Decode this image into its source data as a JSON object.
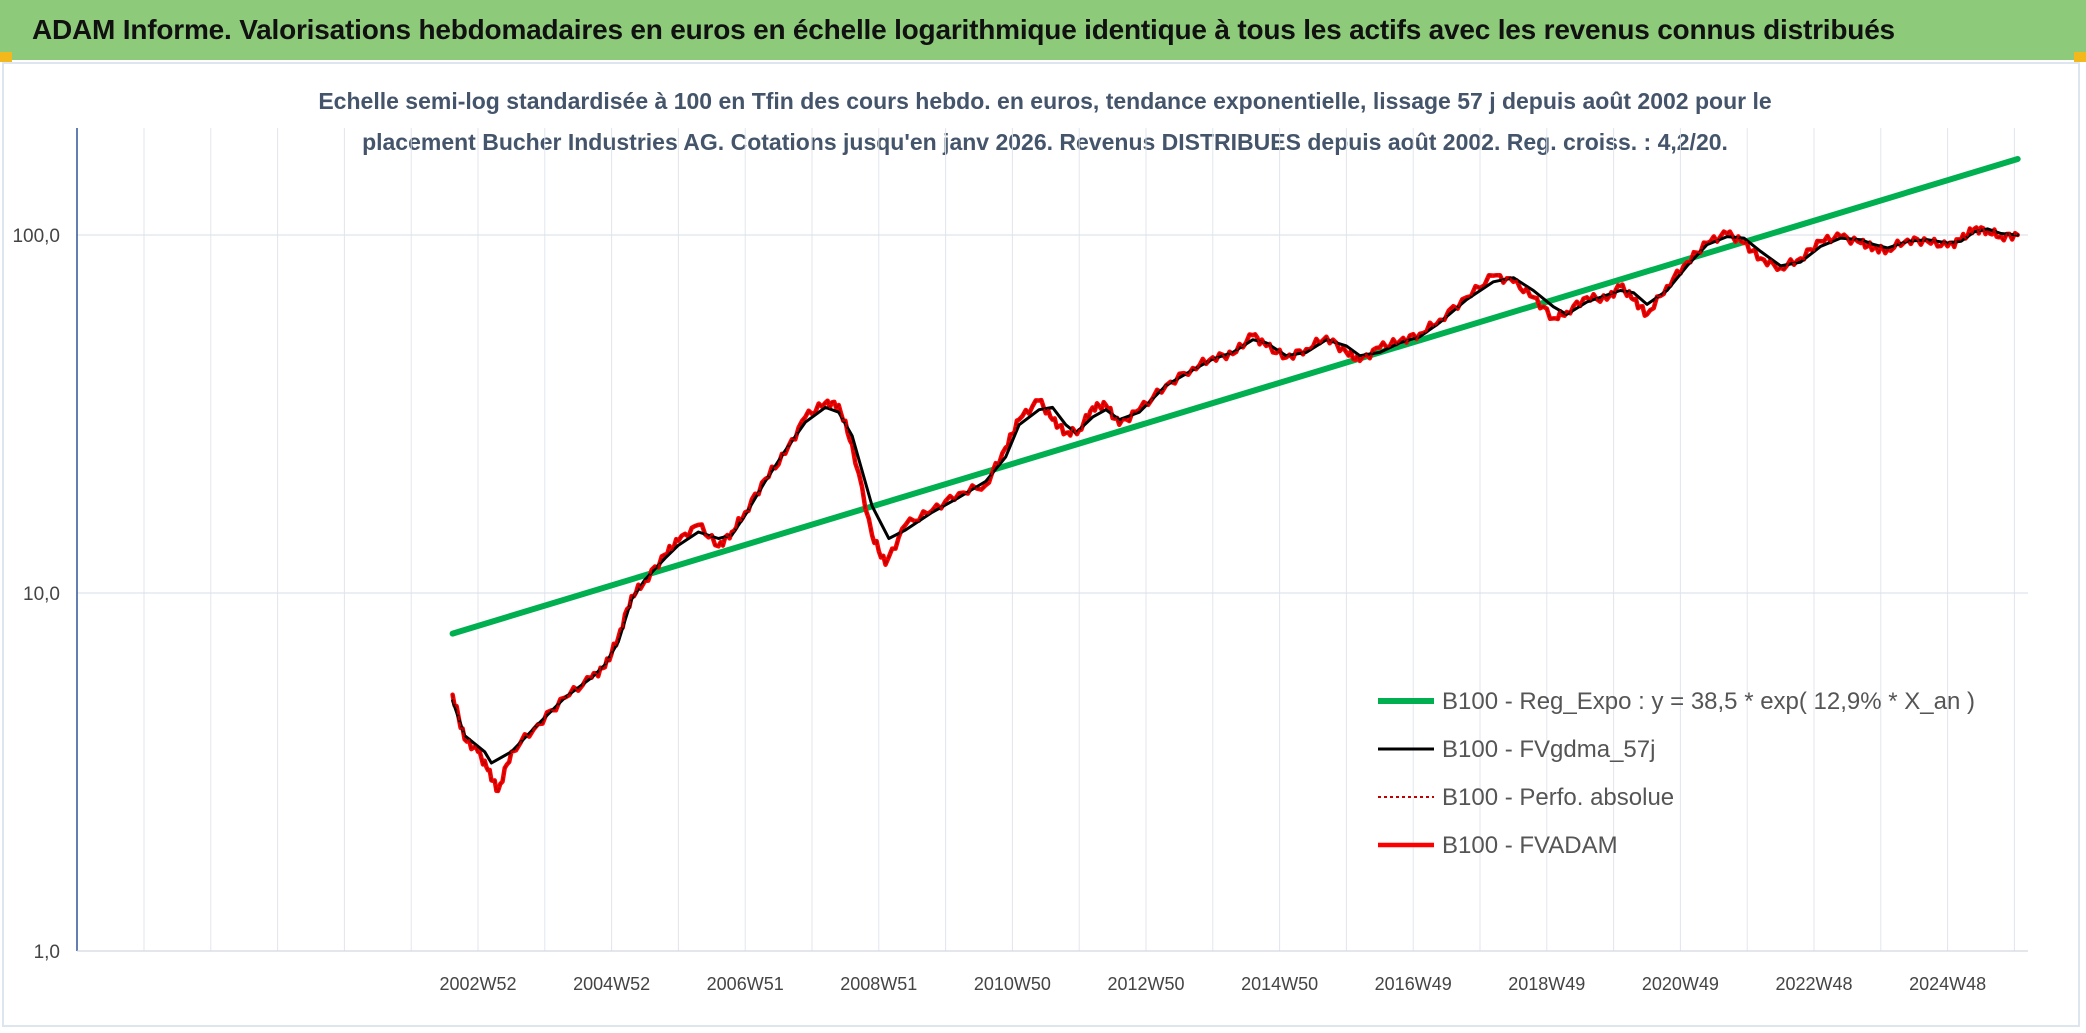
{
  "banner": {
    "title": "ADAM Informe. Valorisations hebdomadaires en euros en échelle logarithmique identique à tous les actifs avec les revenus connus distribués"
  },
  "colors": {
    "banner_bg": "#8dcb7a",
    "regression": "#00b050",
    "smoothed": "#000000",
    "absolute": "#c00000",
    "fvadam": "#ff0000",
    "gold_corner": "#f2b81c"
  },
  "chart_data": {
    "type": "line",
    "title_line1": "Echelle semi-log standardisée à 100 en Tfin des cours hebdo. en euros, tendance exponentielle, lissage 57 j depuis août 2002 pour le",
    "title_line2": "placement Bucher Industries AG. Cotations jusqu'en janv 2026. Revenus DISTRIBUES depuis août 2002. Reg. croiss. : 4,2/20.",
    "y_scale": "log",
    "ylim": [
      1,
      100
    ],
    "y_ticks": [
      {
        "value": 1,
        "label": "1,0"
      },
      {
        "value": 10,
        "label": "10,0"
      },
      {
        "value": 100,
        "label": "100,0"
      }
    ],
    "x_tick_labels": [
      {
        "year": 2003.0,
        "label": "2002W52"
      },
      {
        "year": 2005.0,
        "label": "2004W52"
      },
      {
        "year": 2007.0,
        "label": "2006W51"
      },
      {
        "year": 2009.0,
        "label": "2008W51"
      },
      {
        "year": 2011.0,
        "label": "2010W50"
      },
      {
        "year": 2013.0,
        "label": "2012W50"
      },
      {
        "year": 2015.0,
        "label": "2014W50"
      },
      {
        "year": 2017.0,
        "label": "2016W49"
      },
      {
        "year": 2019.0,
        "label": "2018W49"
      },
      {
        "year": 2021.0,
        "label": "2020W49"
      },
      {
        "year": 2023.0,
        "label": "2022W48"
      },
      {
        "year": 2025.0,
        "label": "2024W48"
      }
    ],
    "gridlines": true,
    "legend_position": "bottom-right",
    "series": [
      {
        "name": "B100 - Reg_Expo : y = 38,5 * exp( 12,9% *  X_an )",
        "style": "regression",
        "points": [
          [
            2002.62,
            7.7
          ],
          [
            2026.05,
            163
          ]
        ]
      },
      {
        "name": "B100 - FVgdma_57j",
        "style": "smoothed",
        "points": [
          [
            2002.62,
            5.0
          ],
          [
            2002.8,
            4.0
          ],
          [
            2003.1,
            3.6
          ],
          [
            2003.2,
            3.35
          ],
          [
            2003.5,
            3.6
          ],
          [
            2003.9,
            4.3
          ],
          [
            2004.3,
            5.1
          ],
          [
            2004.7,
            5.8
          ],
          [
            2004.9,
            6.3
          ],
          [
            2005.1,
            7.3
          ],
          [
            2005.3,
            9.6
          ],
          [
            2005.5,
            10.9
          ],
          [
            2005.8,
            12.5
          ],
          [
            2006.0,
            13.6
          ],
          [
            2006.3,
            14.8
          ],
          [
            2006.6,
            14.2
          ],
          [
            2006.8,
            14.5
          ],
          [
            2007.0,
            16.5
          ],
          [
            2007.3,
            20.5
          ],
          [
            2007.6,
            25.0
          ],
          [
            2007.9,
            30.0
          ],
          [
            2008.2,
            33.0
          ],
          [
            2008.4,
            32.0
          ],
          [
            2008.6,
            27.5
          ],
          [
            2008.9,
            17.5
          ],
          [
            2009.15,
            14.2
          ],
          [
            2009.4,
            15.0
          ],
          [
            2009.8,
            16.8
          ],
          [
            2010.2,
            18.5
          ],
          [
            2010.6,
            20.5
          ],
          [
            2010.9,
            24.0
          ],
          [
            2011.1,
            29.5
          ],
          [
            2011.4,
            32.5
          ],
          [
            2011.6,
            33.0
          ],
          [
            2011.8,
            29.5
          ],
          [
            2011.95,
            28.0
          ],
          [
            2012.2,
            31.0
          ],
          [
            2012.4,
            32.5
          ],
          [
            2012.6,
            30.5
          ],
          [
            2012.9,
            32.0
          ],
          [
            2013.3,
            38.0
          ],
          [
            2013.7,
            42.0
          ],
          [
            2014.0,
            45.0
          ],
          [
            2014.3,
            47.0
          ],
          [
            2014.6,
            51.0
          ],
          [
            2014.8,
            50.0
          ],
          [
            2015.1,
            46.0
          ],
          [
            2015.4,
            47.0
          ],
          [
            2015.7,
            51.0
          ],
          [
            2016.0,
            49.0
          ],
          [
            2016.2,
            46.0
          ],
          [
            2016.5,
            47.0
          ],
          [
            2016.8,
            50.0
          ],
          [
            2017.1,
            52.0
          ],
          [
            2017.4,
            57.0
          ],
          [
            2017.8,
            66.0
          ],
          [
            2018.2,
            74.0
          ],
          [
            2018.5,
            76.0
          ],
          [
            2018.8,
            70.0
          ],
          [
            2019.1,
            63.0
          ],
          [
            2019.3,
            60.0
          ],
          [
            2019.6,
            65.0
          ],
          [
            2019.9,
            68.0
          ],
          [
            2020.1,
            70.0
          ],
          [
            2020.3,
            69.0
          ],
          [
            2020.5,
            64.0
          ],
          [
            2020.8,
            70.0
          ],
          [
            2021.1,
            82.0
          ],
          [
            2021.4,
            94.0
          ],
          [
            2021.7,
            99.0
          ],
          [
            2021.95,
            98.0
          ],
          [
            2022.2,
            90.0
          ],
          [
            2022.5,
            82.0
          ],
          [
            2022.8,
            84.0
          ],
          [
            2023.1,
            93.0
          ],
          [
            2023.4,
            98.0
          ],
          [
            2023.7,
            97.0
          ],
          [
            2023.9,
            94.0
          ],
          [
            2024.1,
            92.0
          ],
          [
            2024.4,
            96.0
          ],
          [
            2024.7,
            97.0
          ],
          [
            2025.0,
            95.0
          ],
          [
            2025.2,
            96.0
          ],
          [
            2025.4,
            102.0
          ],
          [
            2025.6,
            104.0
          ],
          [
            2025.8,
            101.0
          ],
          [
            2026.05,
            100.0
          ]
        ]
      },
      {
        "name": "B100 - Perfo. absolue",
        "style": "absolute",
        "points": [
          [
            2002.62,
            5.2
          ],
          [
            2002.8,
            3.9
          ],
          [
            2003.0,
            3.6
          ],
          [
            2003.15,
            3.2
          ],
          [
            2003.3,
            2.8
          ],
          [
            2003.5,
            3.6
          ],
          [
            2003.9,
            4.3
          ],
          [
            2004.3,
            5.1
          ],
          [
            2004.7,
            5.8
          ],
          [
            2004.9,
            6.2
          ],
          [
            2005.1,
            7.5
          ],
          [
            2005.3,
            9.8
          ],
          [
            2005.5,
            10.8
          ],
          [
            2005.8,
            12.8
          ],
          [
            2006.0,
            14.0
          ],
          [
            2006.3,
            15.5
          ],
          [
            2006.6,
            13.5
          ],
          [
            2006.8,
            14.8
          ],
          [
            2007.0,
            16.8
          ],
          [
            2007.3,
            20.8
          ],
          [
            2007.6,
            24.5
          ],
          [
            2007.9,
            31.0
          ],
          [
            2008.2,
            34.0
          ],
          [
            2008.4,
            33.5
          ],
          [
            2008.6,
            26.0
          ],
          [
            2008.9,
            14.5
          ],
          [
            2009.1,
            12.0
          ],
          [
            2009.4,
            15.5
          ],
          [
            2009.8,
            17.0
          ],
          [
            2010.2,
            19.0
          ],
          [
            2010.6,
            20.0
          ],
          [
            2010.9,
            25.5
          ],
          [
            2011.1,
            30.5
          ],
          [
            2011.4,
            34.5
          ],
          [
            2011.6,
            30.5
          ],
          [
            2011.8,
            28.0
          ],
          [
            2012.0,
            28.5
          ],
          [
            2012.2,
            33.0
          ],
          [
            2012.4,
            33.5
          ],
          [
            2012.6,
            29.5
          ],
          [
            2012.9,
            32.5
          ],
          [
            2013.3,
            38.0
          ],
          [
            2013.7,
            42.5
          ],
          [
            2014.0,
            45.5
          ],
          [
            2014.3,
            46.5
          ],
          [
            2014.6,
            52.5
          ],
          [
            2014.8,
            49.0
          ],
          [
            2015.1,
            45.5
          ],
          [
            2015.4,
            48.0
          ],
          [
            2015.7,
            52.0
          ],
          [
            2016.0,
            47.0
          ],
          [
            2016.2,
            44.5
          ],
          [
            2016.5,
            48.5
          ],
          [
            2016.8,
            50.5
          ],
          [
            2017.1,
            53.0
          ],
          [
            2017.4,
            58.0
          ],
          [
            2017.8,
            67.0
          ],
          [
            2018.2,
            77.0
          ],
          [
            2018.5,
            74.0
          ],
          [
            2018.8,
            67.0
          ],
          [
            2019.1,
            58.5
          ],
          [
            2019.3,
            61.0
          ],
          [
            2019.6,
            67.0
          ],
          [
            2019.9,
            66.0
          ],
          [
            2020.1,
            72.0
          ],
          [
            2020.3,
            66.0
          ],
          [
            2020.5,
            60.0
          ],
          [
            2020.8,
            72.0
          ],
          [
            2021.1,
            84.0
          ],
          [
            2021.4,
            95.0
          ],
          [
            2021.7,
            101.0
          ],
          [
            2021.95,
            95.0
          ],
          [
            2022.2,
            86.0
          ],
          [
            2022.5,
            81.0
          ],
          [
            2022.8,
            86.0
          ],
          [
            2023.1,
            96.0
          ],
          [
            2023.4,
            99.0
          ],
          [
            2023.7,
            95.0
          ],
          [
            2023.9,
            92.0
          ],
          [
            2024.1,
            91.0
          ],
          [
            2024.4,
            97.0
          ],
          [
            2024.7,
            96.0
          ],
          [
            2025.0,
            93.0
          ],
          [
            2025.2,
            97.0
          ],
          [
            2025.4,
            104.0
          ],
          [
            2025.6,
            103.0
          ],
          [
            2025.8,
            99.0
          ],
          [
            2026.05,
            100.0
          ]
        ]
      },
      {
        "name": "B100 - FVADAM",
        "style": "fvadam",
        "points": [
          [
            2002.62,
            5.2
          ],
          [
            2002.8,
            3.9
          ],
          [
            2003.0,
            3.6
          ],
          [
            2003.15,
            3.2
          ],
          [
            2003.3,
            2.8
          ],
          [
            2003.5,
            3.6
          ],
          [
            2003.9,
            4.3
          ],
          [
            2004.3,
            5.1
          ],
          [
            2004.7,
            5.8
          ],
          [
            2004.9,
            6.2
          ],
          [
            2005.1,
            7.5
          ],
          [
            2005.3,
            9.8
          ],
          [
            2005.5,
            10.8
          ],
          [
            2005.8,
            12.8
          ],
          [
            2006.0,
            14.0
          ],
          [
            2006.3,
            15.5
          ],
          [
            2006.6,
            13.5
          ],
          [
            2006.8,
            14.8
          ],
          [
            2007.0,
            16.8
          ],
          [
            2007.3,
            20.8
          ],
          [
            2007.6,
            24.5
          ],
          [
            2007.9,
            31.0
          ],
          [
            2008.2,
            34.0
          ],
          [
            2008.4,
            33.5
          ],
          [
            2008.6,
            26.0
          ],
          [
            2008.9,
            14.5
          ],
          [
            2009.1,
            12.0
          ],
          [
            2009.4,
            15.5
          ],
          [
            2009.8,
            17.0
          ],
          [
            2010.2,
            19.0
          ],
          [
            2010.6,
            20.0
          ],
          [
            2010.9,
            25.5
          ],
          [
            2011.1,
            30.5
          ],
          [
            2011.4,
            34.5
          ],
          [
            2011.6,
            30.5
          ],
          [
            2011.8,
            28.0
          ],
          [
            2012.0,
            28.5
          ],
          [
            2012.2,
            33.0
          ],
          [
            2012.4,
            33.5
          ],
          [
            2012.6,
            29.5
          ],
          [
            2012.9,
            32.5
          ],
          [
            2013.3,
            38.0
          ],
          [
            2013.7,
            42.5
          ],
          [
            2014.0,
            45.5
          ],
          [
            2014.3,
            46.5
          ],
          [
            2014.6,
            52.5
          ],
          [
            2014.8,
            49.0
          ],
          [
            2015.1,
            45.5
          ],
          [
            2015.4,
            48.0
          ],
          [
            2015.7,
            52.0
          ],
          [
            2016.0,
            47.0
          ],
          [
            2016.2,
            44.5
          ],
          [
            2016.5,
            48.5
          ],
          [
            2016.8,
            50.5
          ],
          [
            2017.1,
            53.0
          ],
          [
            2017.4,
            58.0
          ],
          [
            2017.8,
            67.0
          ],
          [
            2018.2,
            77.0
          ],
          [
            2018.5,
            74.0
          ],
          [
            2018.8,
            67.0
          ],
          [
            2019.1,
            58.5
          ],
          [
            2019.3,
            61.0
          ],
          [
            2019.6,
            67.0
          ],
          [
            2019.9,
            66.0
          ],
          [
            2020.1,
            72.0
          ],
          [
            2020.3,
            66.0
          ],
          [
            2020.5,
            60.0
          ],
          [
            2020.8,
            72.0
          ],
          [
            2021.1,
            84.0
          ],
          [
            2021.4,
            95.0
          ],
          [
            2021.7,
            101.0
          ],
          [
            2021.95,
            95.0
          ],
          [
            2022.2,
            86.0
          ],
          [
            2022.5,
            81.0
          ],
          [
            2022.8,
            86.0
          ],
          [
            2023.1,
            96.0
          ],
          [
            2023.4,
            99.0
          ],
          [
            2023.7,
            95.0
          ],
          [
            2023.9,
            92.0
          ],
          [
            2024.1,
            91.0
          ],
          [
            2024.4,
            97.0
          ],
          [
            2024.7,
            96.0
          ],
          [
            2025.0,
            93.0
          ],
          [
            2025.2,
            97.0
          ],
          [
            2025.4,
            104.0
          ],
          [
            2025.6,
            103.0
          ],
          [
            2025.8,
            99.0
          ],
          [
            2026.05,
            100.0
          ]
        ]
      }
    ]
  }
}
